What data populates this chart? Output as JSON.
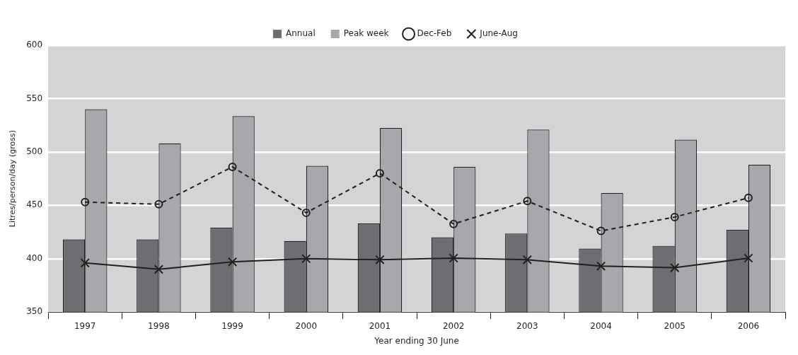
{
  "chart_data": {
    "type": "bar",
    "xlabel": "Year ending 30 June",
    "ylabel": "Litres/person/day (gross)",
    "categories": [
      "1997",
      "1998",
      "1999",
      "2000",
      "2001",
      "2002",
      "2003",
      "2004",
      "2005",
      "2006"
    ],
    "series": [
      {
        "name": "Annual",
        "color": "#6d6e71",
        "values": [
          418,
          418,
          429,
          416.5,
          433,
          420,
          423.5,
          409.5,
          412,
          427
        ]
      },
      {
        "name": "Peak week",
        "color": "#a7a8ab",
        "values": [
          540,
          508,
          533.5,
          487,
          522.5,
          486,
          521,
          461.5,
          511.5,
          488
        ]
      },
      {
        "name": "Dec-Feb",
        "type": "line",
        "color": "#231f20",
        "marker": "circle",
        "line_style": "dashed",
        "values": [
          453,
          451,
          486,
          443,
          480,
          432.5,
          454,
          426,
          439,
          457
        ]
      },
      {
        "name": "June-Aug",
        "type": "line",
        "color": "#231f20",
        "marker": "cross",
        "line_style": "solid",
        "values": [
          396,
          390,
          397,
          400,
          399,
          400.5,
          399,
          393,
          391.5,
          400.5
        ]
      }
    ],
    "ylim": [
      350,
      600
    ],
    "yticks": [
      350,
      400,
      450,
      500,
      550,
      600
    ],
    "grid": "y",
    "legend": "top"
  }
}
